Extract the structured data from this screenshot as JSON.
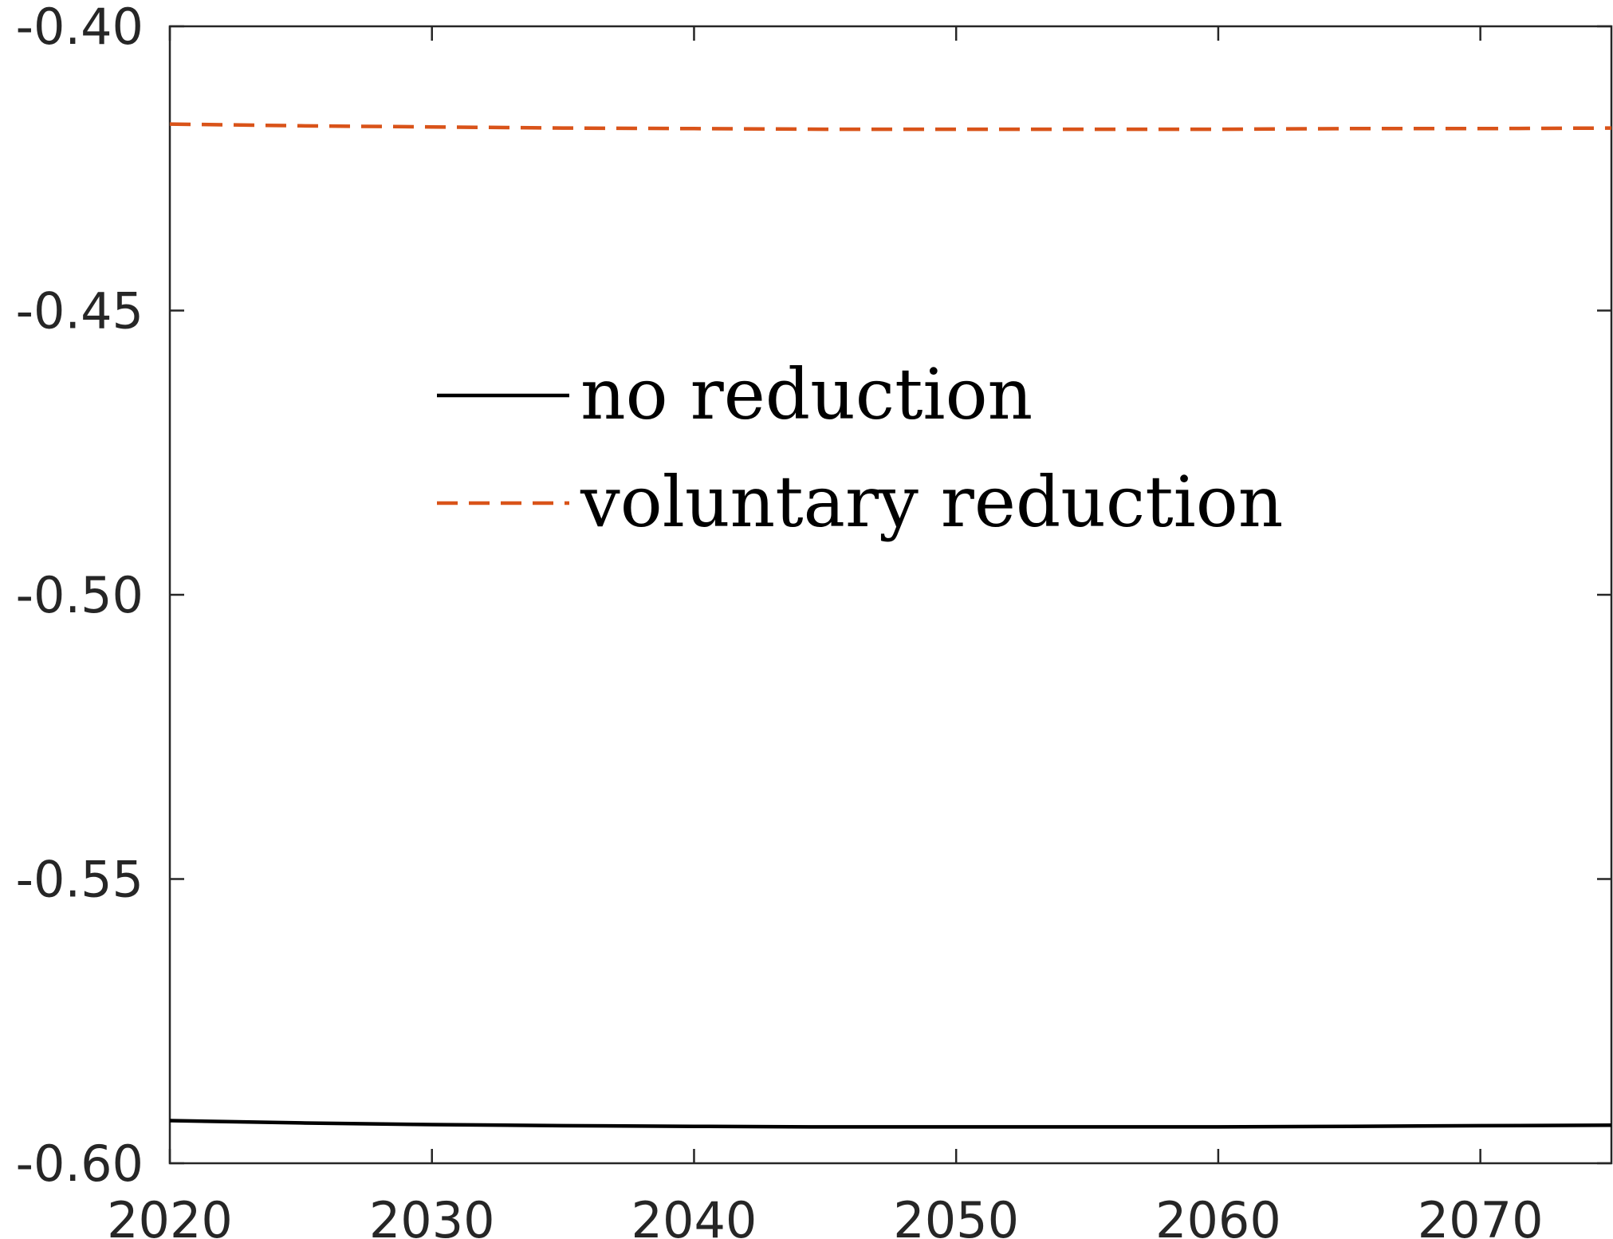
{
  "chart_data": {
    "type": "line",
    "title": "",
    "xlabel": "",
    "ylabel": "",
    "xlim": [
      2020,
      2075
    ],
    "ylim": [
      -0.6,
      -0.4
    ],
    "xticks": [
      2020,
      2030,
      2040,
      2050,
      2060,
      2070
    ],
    "xtick_labels": [
      "2020",
      "2030",
      "2040",
      "2050",
      "2060",
      "2070"
    ],
    "yticks": [
      -0.6,
      -0.55,
      -0.5,
      -0.45,
      -0.4
    ],
    "ytick_labels": [
      "-0.60",
      "-0.55",
      "-0.50",
      "-0.45",
      "-0.40"
    ],
    "grid": false,
    "legend_position": "center-left",
    "series": [
      {
        "name": "no reduction",
        "color": "#000000",
        "dash": "solid",
        "x": [
          2020,
          2025,
          2030,
          2035,
          2040,
          2045,
          2050,
          2055,
          2060,
          2065,
          2070,
          2075
        ],
        "y": [
          -0.5925,
          -0.5929,
          -0.5932,
          -0.5934,
          -0.5935,
          -0.5936,
          -0.5936,
          -0.5936,
          -0.5936,
          -0.5935,
          -0.5934,
          -0.5933
        ]
      },
      {
        "name": "voluntary reduction",
        "color": "#D95319",
        "dash": "dashed",
        "x": [
          2020,
          2025,
          2030,
          2035,
          2040,
          2045,
          2050,
          2055,
          2060,
          2065,
          2070,
          2075
        ],
        "y": [
          -0.4172,
          -0.4175,
          -0.4177,
          -0.4179,
          -0.418,
          -0.4181,
          -0.4181,
          -0.4181,
          -0.4181,
          -0.418,
          -0.418,
          -0.4179
        ]
      }
    ]
  }
}
